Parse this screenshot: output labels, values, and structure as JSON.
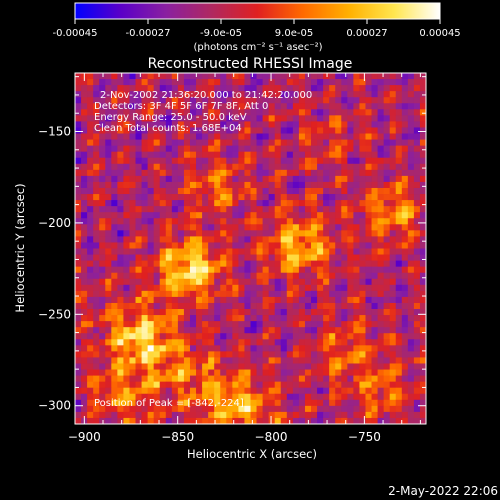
{
  "colorbar": {
    "tick_labels": [
      "-0.00045",
      "-0.00027",
      "-9.0e-05",
      "9.0e-05",
      "0.00027",
      "0.00045"
    ],
    "tick_values": [
      -0.00045,
      -0.00027,
      -9e-05,
      9e-05,
      0.00027,
      0.00045
    ],
    "range": [
      -0.00045,
      0.00045
    ],
    "units_label": "(photons cm⁻² s⁻¹ asec⁻²)",
    "colors": [
      "#0000ff",
      "#5a00c8",
      "#8a20a0",
      "#b02860",
      "#e02020",
      "#ff6a00",
      "#ffb000",
      "#ffe650",
      "#ffffff"
    ]
  },
  "chart_data": {
    "type": "heatmap",
    "title": "Reconstructed RHESSI Image",
    "xlabel": "Heliocentric X (arcsec)",
    "ylabel": "Heliocentric Y (arcsec)",
    "xlim": [
      -905,
      -717
    ],
    "ylim": [
      -310,
      -118
    ],
    "x_ticks": [
      -900,
      -850,
      -800,
      -750
    ],
    "x_tick_labels": [
      "−900",
      "−850",
      "−800",
      "−750"
    ],
    "y_ticks": [
      -150,
      -200,
      -250,
      -300
    ],
    "y_tick_labels": [
      "−150",
      "−200",
      "−250",
      "−300"
    ],
    "annotations": [
      "2-Nov-2002 21:36:20.000 to 21:42:20.000",
      "Detectors: 3F 4F 5F 6F 7F 8F, Att 0",
      "Energy Range: 25.0 - 50.0 keV",
      "Clean     Total counts: 1.68E+04",
      "Position of Peak = [-842,-224]"
    ],
    "peak": [
      -842,
      -224
    ],
    "bright_regions": [
      {
        "x": -844,
        "y": -225,
        "value": 0.00045
      },
      {
        "x": -785,
        "y": -212,
        "value": 0.00036
      },
      {
        "x": -870,
        "y": -262,
        "value": 0.0003
      },
      {
        "x": -735,
        "y": -195,
        "value": 0.00028
      },
      {
        "x": -830,
        "y": -180,
        "value": 0.00022
      },
      {
        "x": -880,
        "y": -295,
        "value": 0.00025
      },
      {
        "x": -760,
        "y": -270,
        "value": 0.0002
      },
      {
        "x": -815,
        "y": -300,
        "value": 0.00018
      },
      {
        "x": -770,
        "y": -155,
        "value": 0.00012
      },
      {
        "x": -740,
        "y": -292,
        "value": 0.0002
      }
    ]
  },
  "footer": {
    "timestamp": "2-May-2022 22:06"
  }
}
